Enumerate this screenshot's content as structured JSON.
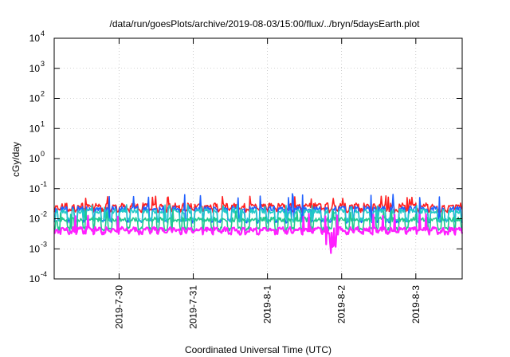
{
  "chart_data": {
    "type": "line",
    "title": "/data/run/goesPlots/archive/2019-08-03/15:00/flux/../bryn/5daysEarth.plot",
    "xlabel": "Coordinated Universal Time (UTC)",
    "ylabel": "cGy/day",
    "yscale": "log",
    "ylim": [
      0.0001,
      10000
    ],
    "y_ticks": [
      {
        "base": "10",
        "exp": "-4",
        "value": 0.0001
      },
      {
        "base": "10",
        "exp": "-3",
        "value": 0.001
      },
      {
        "base": "10",
        "exp": "-2",
        "value": 0.01
      },
      {
        "base": "10",
        "exp": "-1",
        "value": 0.1
      },
      {
        "base": "10",
        "exp": "0",
        "value": 1
      },
      {
        "base": "10",
        "exp": "1",
        "value": 10
      },
      {
        "base": "10",
        "exp": "2",
        "value": 100
      },
      {
        "base": "10",
        "exp": "3",
        "value": 1000
      },
      {
        "base": "10",
        "exp": "4",
        "value": 10000
      }
    ],
    "xlim": [
      "2019-07-29T03:00",
      "2019-08-03T15:00"
    ],
    "x_ticks": [
      "2019-7-30",
      "2019-7-31",
      "2019-8-1",
      "2019-8-2",
      "2019-8-3"
    ],
    "grid": true,
    "legend": "none",
    "series": [
      {
        "color": "#ff2020",
        "baseline": 0.028,
        "dip": 0.019,
        "peak": 0.06
      },
      {
        "color": "#2060ff",
        "baseline": 0.022,
        "dip": 0.0085,
        "peak": 0.07
      },
      {
        "color": "#20c8c8",
        "baseline": 0.018,
        "dip": 0.009,
        "peak": 0.03
      },
      {
        "color": "#20c890",
        "baseline": 0.0095,
        "dip": 0.0045,
        "peak": 0.02
      },
      {
        "color": "#ff20ff",
        "baseline": 0.0045,
        "dip": 0.0035,
        "peak": 0.015,
        "min": 0.0006
      }
    ]
  }
}
